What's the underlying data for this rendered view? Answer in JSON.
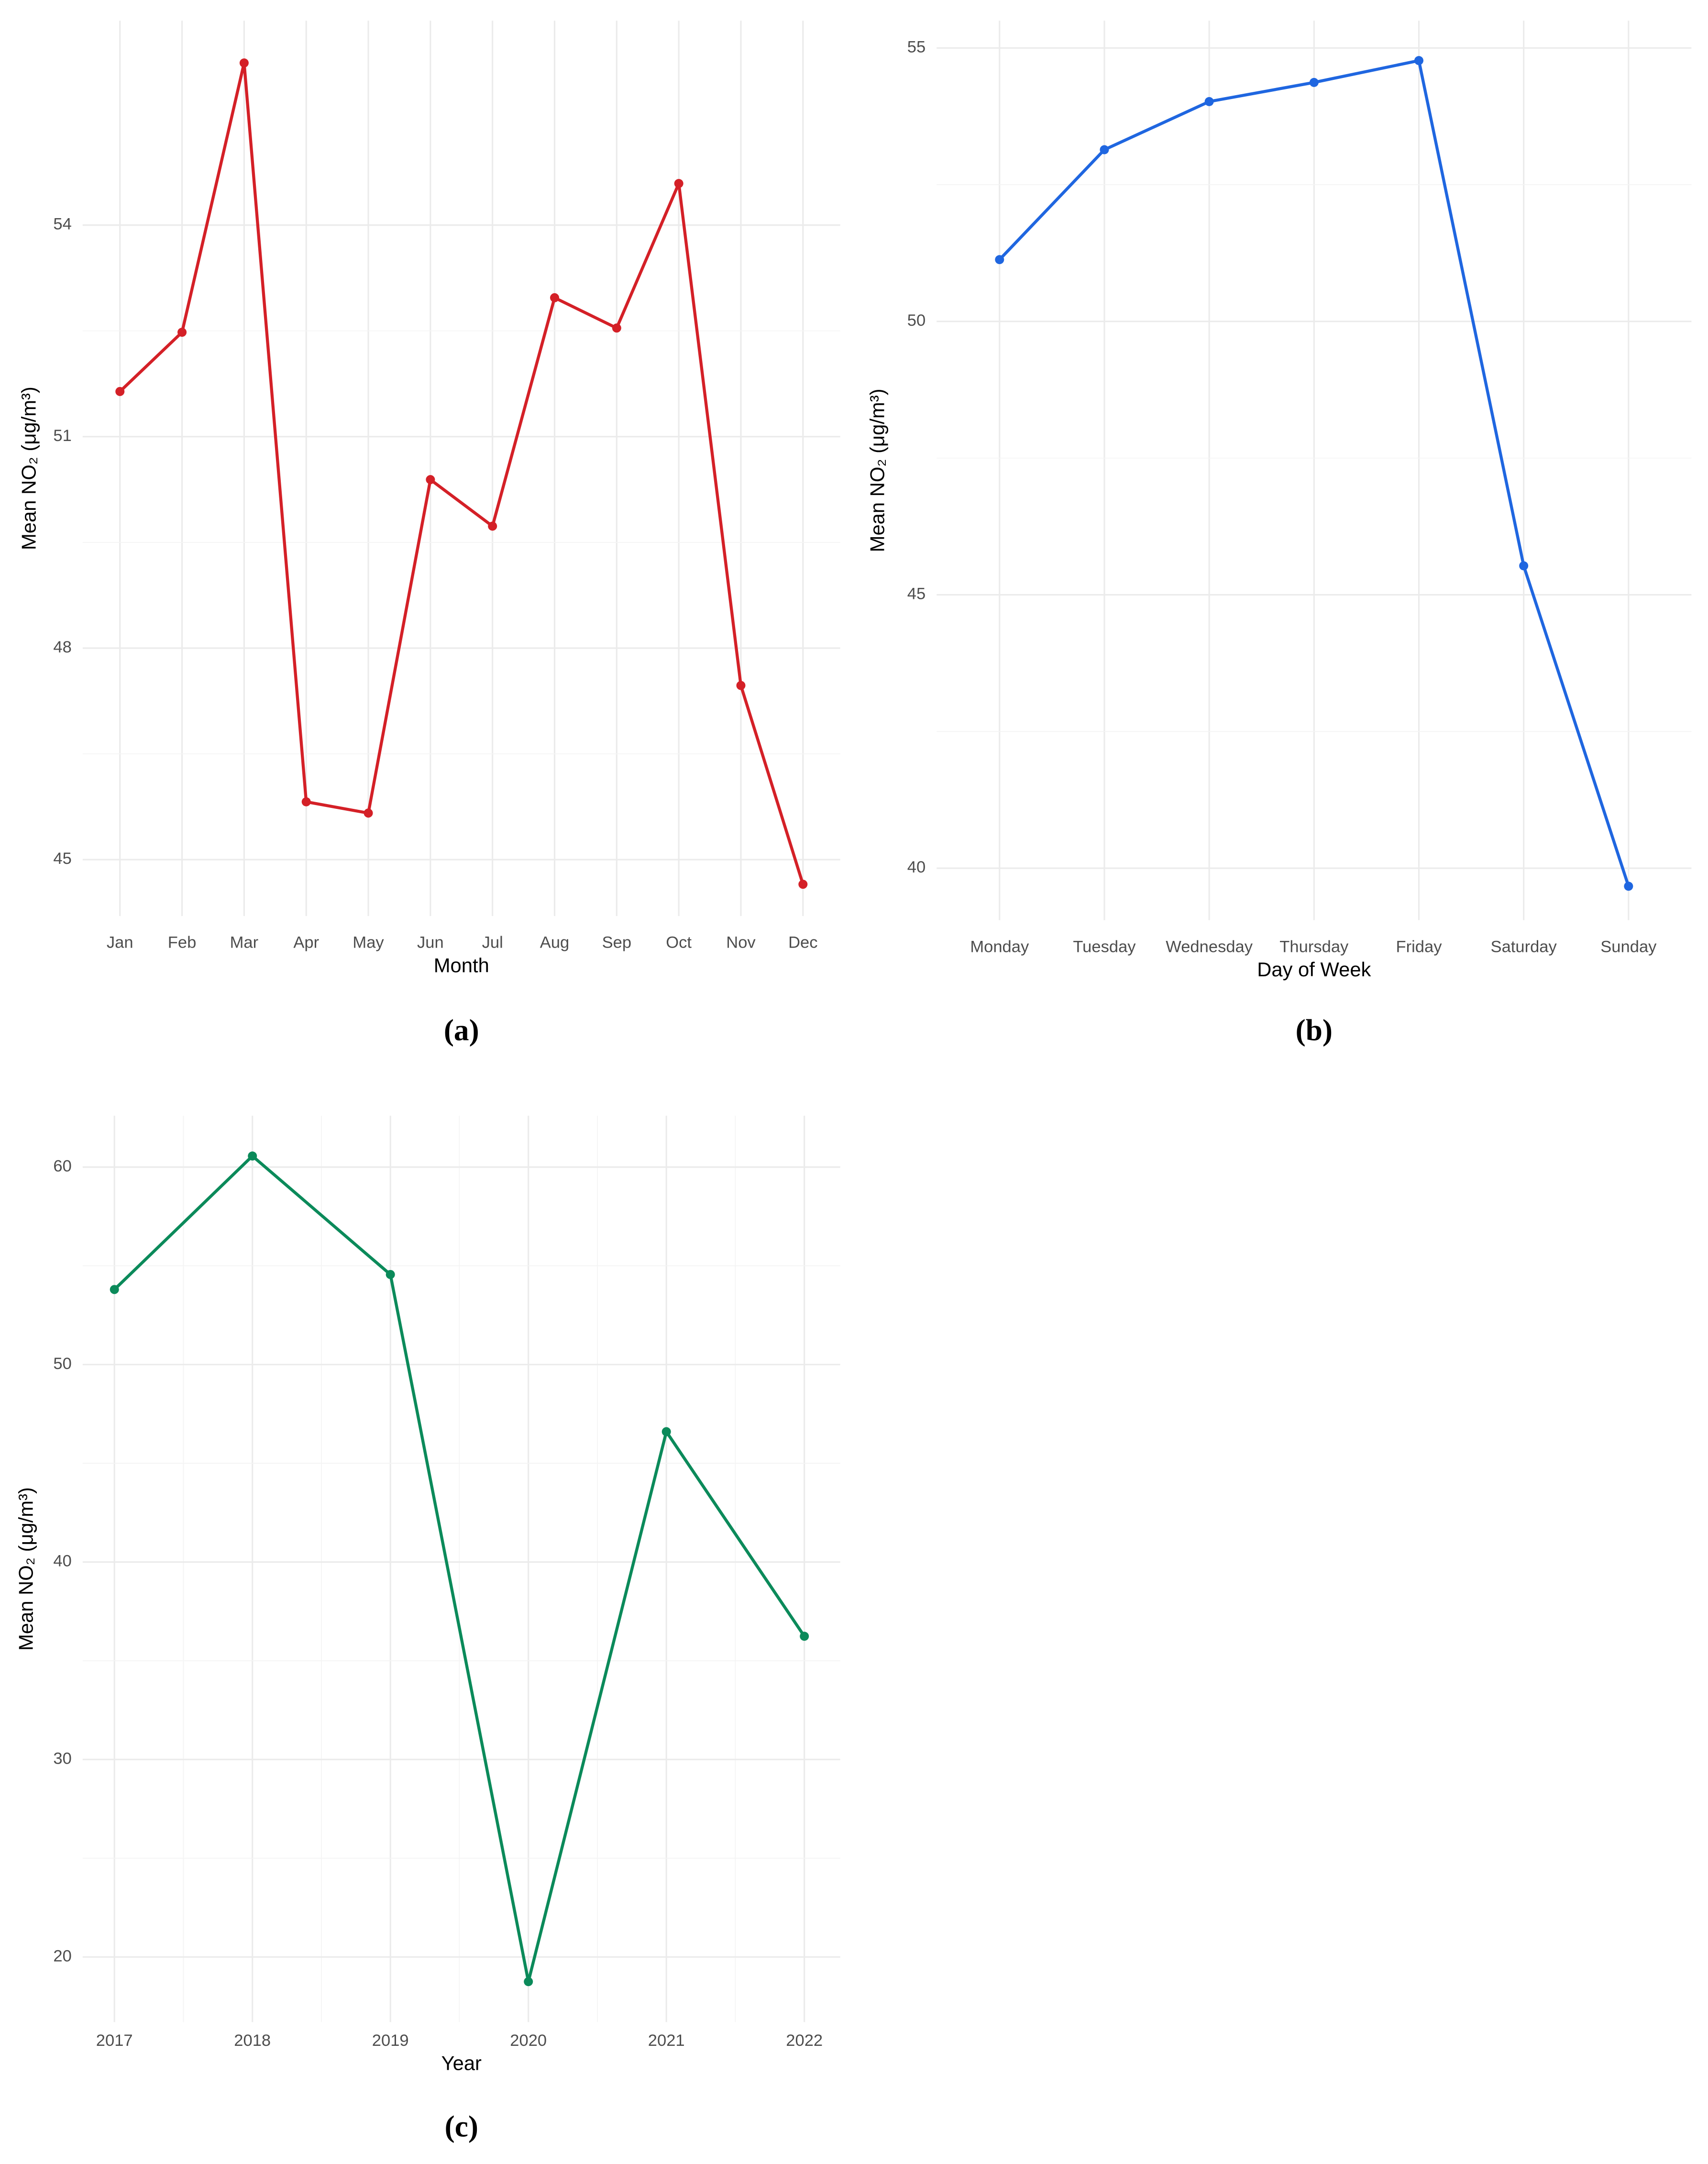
{
  "chart_data": [
    {
      "type": "line",
      "x_label": "Month",
      "y_label": "Mean NO₂ (μg/m³)",
      "panel_label": "(a)",
      "categories": [
        "Jan",
        "Feb",
        "Mar",
        "Apr",
        "May",
        "Jun",
        "Jul",
        "Aug",
        "Sep",
        "Oct",
        "Nov",
        "Dec"
      ],
      "series": [
        {
          "color": "#d42027",
          "values": [
            51.64,
            52.48,
            56.3,
            45.82,
            45.66,
            50.39,
            49.73,
            52.97,
            52.54,
            54.59,
            47.47,
            44.65
          ]
        }
      ],
      "ylim": [
        44.2,
        56.9
      ],
      "yticks": [
        45,
        48,
        51,
        54
      ],
      "grid": true,
      "minor_grid": true
    },
    {
      "type": "line",
      "x_label": "Day of Week",
      "y_label": "Mean NO₂ (μg/m³)",
      "panel_label": "(b)",
      "categories": [
        "Monday",
        "Tuesday",
        "Wednesday",
        "Thursday",
        "Friday",
        "Saturday",
        "Sunday"
      ],
      "series": [
        {
          "color": "#1f66e0",
          "values": [
            51.13,
            53.14,
            54.02,
            54.37,
            54.77,
            45.53,
            39.67
          ]
        }
      ],
      "ylim": [
        39.05,
        55.5
      ],
      "yticks": [
        40,
        45,
        50,
        55
      ],
      "grid": true,
      "minor_grid": true
    },
    {
      "type": "line",
      "x_label": "Year",
      "y_label": "Mean NO₂ (μg/m³)",
      "panel_label": "(c)",
      "x": [
        2017,
        2018,
        2019,
        2020,
        2021,
        2022
      ],
      "series": [
        {
          "color": "#0b8a5a",
          "values": [
            53.8,
            60.56,
            54.56,
            18.75,
            46.6,
            36.24
          ]
        }
      ],
      "xlim": [
        2016.77,
        2022.26
      ],
      "xticks": [
        2017,
        2018,
        2019,
        2020,
        2021,
        2022
      ],
      "ylim": [
        16.7,
        62.6
      ],
      "yticks": [
        20,
        30,
        40,
        50,
        60
      ],
      "grid": true,
      "minor_grid": true
    }
  ]
}
